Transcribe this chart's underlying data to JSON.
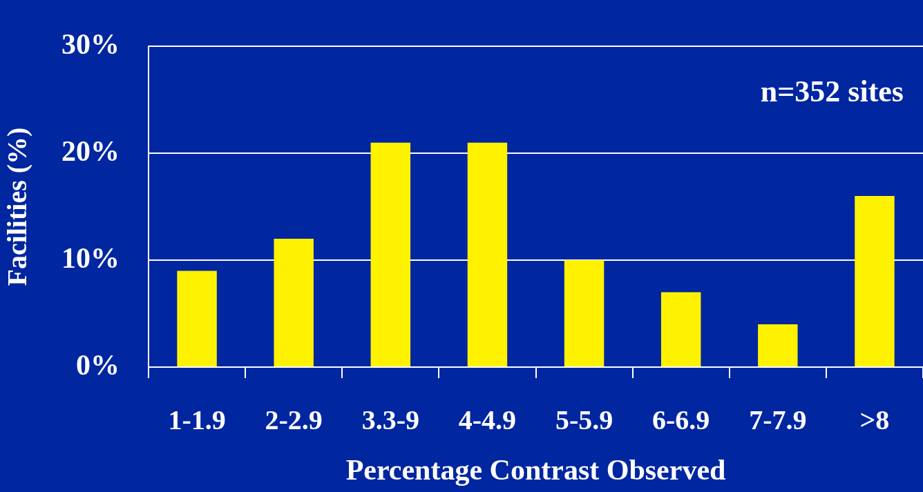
{
  "chart_data": {
    "type": "bar",
    "xlabel": "Percentage Contrast Observed",
    "ylabel": "Facilities (%)",
    "annotations": [
      "n=352 sites"
    ],
    "categories": [
      "1-1.9",
      "2-2.9",
      "3.3-9",
      "4-4.9",
      "5-5.9",
      "6-6.9",
      "7-7.9",
      ">8"
    ],
    "values": [
      9,
      12,
      21,
      21,
      10,
      7,
      4,
      16
    ],
    "color": "#fff200",
    "ylim": [
      0,
      30
    ],
    "yticks": [
      {
        "value": 0,
        "label": "0%"
      },
      {
        "value": 10,
        "label": "10%"
      },
      {
        "value": 20,
        "label": "20%"
      },
      {
        "value": 30,
        "label": "30%"
      }
    ],
    "grid": "y",
    "legend": false
  }
}
